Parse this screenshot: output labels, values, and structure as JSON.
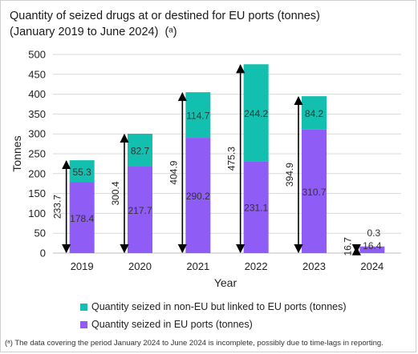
{
  "chart_data": {
    "type": "bar",
    "stacked": true,
    "title_line1": "Quantity of seized drugs at or destined for EU ports (tonnes)",
    "title_line2": "(January 2019 to June 2024)",
    "title_note": "(ᵃ)",
    "xlabel": "Year",
    "ylabel": "Tonnes",
    "ylim": [
      0,
      500
    ],
    "yticks": [
      "0",
      "50",
      "100",
      "150",
      "200",
      "250",
      "300",
      "350",
      "400",
      "450",
      "500"
    ],
    "categories": [
      "2019",
      "2020",
      "2021",
      "2022",
      "2023",
      "2024"
    ],
    "series": [
      {
        "name": "Quantity seized in EU ports (tonnes)",
        "color": "#8f5cf5",
        "values": [
          178.4,
          217.7,
          290.2,
          231.1,
          310.7,
          16.4
        ],
        "labels": [
          "178.4",
          "217.7",
          "290.2",
          "231.1",
          "310.7",
          "16.4"
        ]
      },
      {
        "name": "Quantity seized in non-EU but linked to EU ports (tonnes)",
        "color": "#13bfae",
        "values": [
          55.3,
          82.7,
          114.7,
          244.2,
          84.2,
          0.3
        ],
        "labels": [
          "55.3",
          "82.7",
          "114.7",
          "244.2",
          "84.2",
          "0.3"
        ]
      }
    ],
    "totals": [
      233.7,
      300.4,
      404.9,
      475.3,
      394.9,
      16.7
    ],
    "total_labels": [
      "233.7",
      "300.4",
      "404.9",
      "475.3",
      "394.9",
      "16.7"
    ],
    "legend_order": [
      1,
      0
    ],
    "legend_position": "bottom",
    "grid": true
  },
  "footnote": "(ᵃ) The data covering the period January 2024 to June 2024 is incomplete, possibly due to time-lags in reporting."
}
